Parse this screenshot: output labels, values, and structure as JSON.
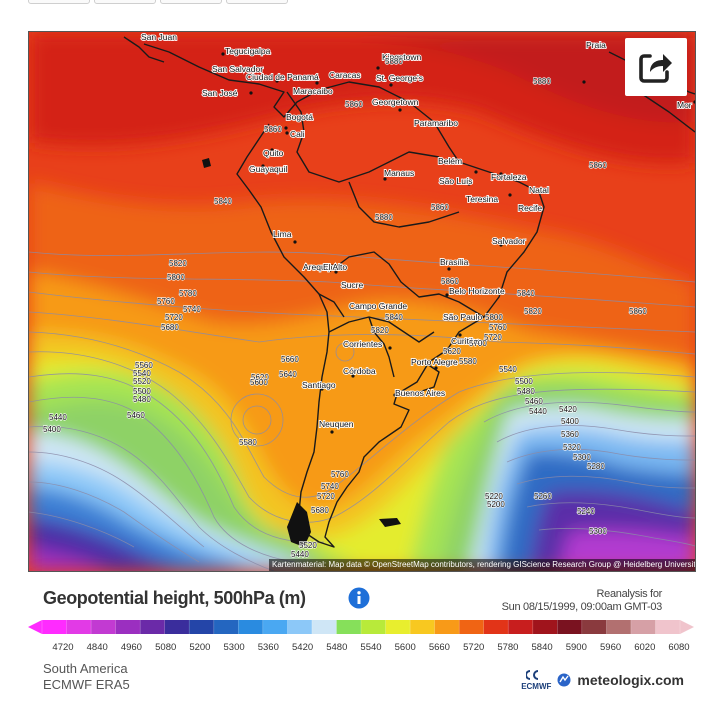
{
  "map": {
    "attribution": "Kartenmaterial: Map data © OpenStreetMap contributors, rendering GIScience Research Group @ Heidelberg University",
    "places": [
      {
        "name": "San Juan"
      },
      {
        "name": "Tegucigalpa"
      },
      {
        "name": "Kingstown"
      },
      {
        "name": "Praia"
      },
      {
        "name": "San Salvador"
      },
      {
        "name": "Ciudad de Panamá"
      },
      {
        "name": "Caracas"
      },
      {
        "name": "St. George's"
      },
      {
        "name": "San José"
      },
      {
        "name": "Maracaibo"
      },
      {
        "name": "Georgetown"
      },
      {
        "name": "Paramaribo"
      },
      {
        "name": "Bogotá"
      },
      {
        "name": "Cali"
      },
      {
        "name": "Quito"
      },
      {
        "name": "Guayaquil"
      },
      {
        "name": "Manaus"
      },
      {
        "name": "Belém"
      },
      {
        "name": "São Luís"
      },
      {
        "name": "Fortaleza"
      },
      {
        "name": "Natal"
      },
      {
        "name": "Teresina"
      },
      {
        "name": "Recife"
      },
      {
        "name": "Lima"
      },
      {
        "name": "Salvador"
      },
      {
        "name": "Arequipa"
      },
      {
        "name": "El Alto"
      },
      {
        "name": "Brasília"
      },
      {
        "name": "Sucre"
      },
      {
        "name": "Belo Horizonte"
      },
      {
        "name": "Campo Grande"
      },
      {
        "name": "São Paulo"
      },
      {
        "name": "Curitiba"
      },
      {
        "name": "Corrientes"
      },
      {
        "name": "Porto Alegre"
      },
      {
        "name": "Córdoba"
      },
      {
        "name": "Santiago"
      },
      {
        "name": "Buenos Aires"
      },
      {
        "name": "Neuquen"
      },
      {
        "name": "Mor"
      }
    ],
    "contour_labels": [
      {
        "v": "5880"
      },
      {
        "v": "5880"
      },
      {
        "v": "5860"
      },
      {
        "v": "5860"
      },
      {
        "v": "5860"
      },
      {
        "v": "5840"
      },
      {
        "v": "5880"
      },
      {
        "v": "5860"
      },
      {
        "v": "5820"
      },
      {
        "v": "5800"
      },
      {
        "v": "5780"
      },
      {
        "v": "5760"
      },
      {
        "v": "5740"
      },
      {
        "v": "5720"
      },
      {
        "v": "5680"
      },
      {
        "v": "5860"
      },
      {
        "v": "5840"
      },
      {
        "v": "5820"
      },
      {
        "v": "5860"
      },
      {
        "v": "5800"
      },
      {
        "v": "5760"
      },
      {
        "v": "5720"
      },
      {
        "v": "5700"
      },
      {
        "v": "5660"
      },
      {
        "v": "5640"
      },
      {
        "v": "5620"
      },
      {
        "v": "5600"
      },
      {
        "v": "5560"
      },
      {
        "v": "5540"
      },
      {
        "v": "5520"
      },
      {
        "v": "5500"
      },
      {
        "v": "5480"
      },
      {
        "v": "5460"
      },
      {
        "v": "5440"
      },
      {
        "v": "5400"
      },
      {
        "v": "5580"
      },
      {
        "v": "5540"
      },
      {
        "v": "5500"
      },
      {
        "v": "5480"
      },
      {
        "v": "5460"
      },
      {
        "v": "5440"
      },
      {
        "v": "5420"
      },
      {
        "v": "5400"
      },
      {
        "v": "5360"
      },
      {
        "v": "5320"
      },
      {
        "v": "5300"
      },
      {
        "v": "5280"
      },
      {
        "v": "5260"
      },
      {
        "v": "5220"
      },
      {
        "v": "5200"
      },
      {
        "v": "5240"
      },
      {
        "v": "5300"
      },
      {
        "v": "5760"
      },
      {
        "v": "5740"
      },
      {
        "v": "5720"
      },
      {
        "v": "5680"
      },
      {
        "v": "5520"
      },
      {
        "v": "5440"
      },
      {
        "v": "5840"
      },
      {
        "v": "5820"
      },
      {
        "v": "5620"
      },
      {
        "v": "5580"
      }
    ]
  },
  "share_icon": "share-icon",
  "title": "Geopotential height, 500hPa (m)",
  "reanalysis_line1": "Reanalysis for",
  "reanalysis_line2": "Sun 08/15/1999, 09:00am GMT-03",
  "legend": {
    "labels": [
      "4720",
      "4840",
      "4960",
      "5080",
      "5200",
      "5300",
      "5360",
      "5420",
      "5480",
      "5540",
      "5600",
      "5660",
      "5720",
      "5780",
      "5840",
      "5900",
      "5960",
      "6020",
      "6080"
    ],
    "colors": [
      "#ff2bff",
      "#e23ae6",
      "#c23ad2",
      "#9b2fc0",
      "#6b2aa8",
      "#3a2d9c",
      "#2445a8",
      "#2466c0",
      "#2a8be0",
      "#4aa8f2",
      "#8cc8f8",
      "#cfe6f6",
      "#86e05a",
      "#b8ea3a",
      "#e8ee2e",
      "#f8c820",
      "#f89a18",
      "#f06414",
      "#e23418",
      "#c81e1e",
      "#a0141c",
      "#7a1220",
      "#8a3a3e",
      "#b27070",
      "#d6a0a6",
      "#f0c4cc"
    ]
  },
  "region": "South America",
  "model": "ECMWF ERA5",
  "brand": {
    "ecmwf": "ECMWF",
    "meteologix": "meteologix.com"
  }
}
